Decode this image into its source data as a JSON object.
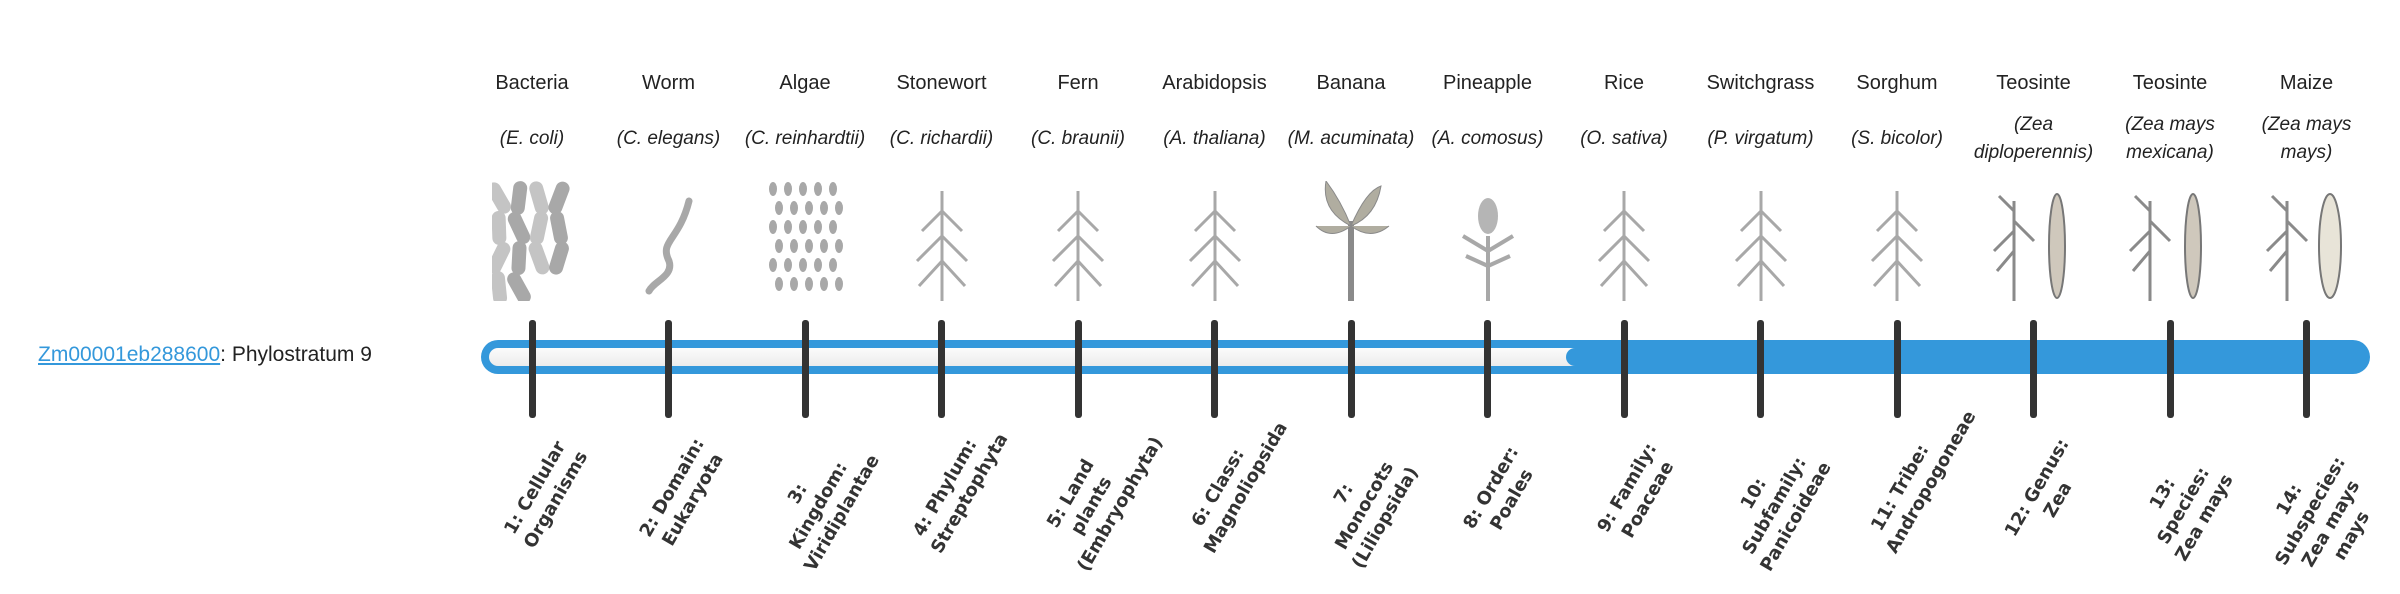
{
  "gene": {
    "id": "Zm00001eb288600",
    "suffix": ": Phylostratum 9",
    "phylostratum": 9
  },
  "colors": {
    "accent": "#3498db",
    "tick": "#333333",
    "track": "#f3f3f3"
  },
  "organisms": [
    {
      "common": "Bacteria",
      "scientific": "(E. coli)",
      "icon": "bacteria-icon"
    },
    {
      "common": "Worm",
      "scientific": "(C. elegans)",
      "icon": "worm-icon"
    },
    {
      "common": "Algae",
      "scientific": "(C. reinhardtii)",
      "icon": "algae-icon"
    },
    {
      "common": "Stonewort",
      "scientific": "(C. richardii)",
      "icon": "stonewort-icon"
    },
    {
      "common": "Fern",
      "scientific": "(C. braunii)",
      "icon": "fern-icon"
    },
    {
      "common": "Arabidopsis",
      "scientific": "(A. thaliana)",
      "icon": "arabidopsis-icon"
    },
    {
      "common": "Banana",
      "scientific": "(M. acuminata)",
      "icon": "banana-icon"
    },
    {
      "common": "Pineapple",
      "scientific": "(A. comosus)",
      "icon": "pineapple-icon"
    },
    {
      "common": "Rice",
      "scientific": "(O. sativa)",
      "icon": "rice-icon"
    },
    {
      "common": "Switchgrass",
      "scientific": "(P. virgatum)",
      "icon": "switchgrass-icon"
    },
    {
      "common": "Sorghum",
      "scientific": "(S. bicolor)",
      "icon": "sorghum-icon"
    },
    {
      "common": "Teosinte",
      "scientific": "(Zea diploperennis)",
      "icon": "teosinte-icon"
    },
    {
      "common": "Teosinte",
      "scientific": "(Zea mays mexicana)",
      "icon": "teosinte-icon"
    },
    {
      "common": "Maize",
      "scientific": "(Zea mays mays)",
      "icon": "maize-icon"
    }
  ],
  "strata": [
    "1: Cellular Organisms",
    "2: Domain: Eukaryota",
    "3: Kingdom: Viridiplantae",
    "4: Phylum: Streptophyta",
    "5: Land plants (Embryophyta)",
    "6: Class: Magnoliopsida",
    "7: Monocots (Liliopsida)",
    "8: Order: Poales",
    "9: Family: Poaceae",
    "10: Subfamily: Panicoideae",
    "11: Tribe: Andropogoneae",
    "12: Genus: Zea",
    "13: Species: Zea mays",
    "14: Subspecies: Zea mays mays"
  ]
}
